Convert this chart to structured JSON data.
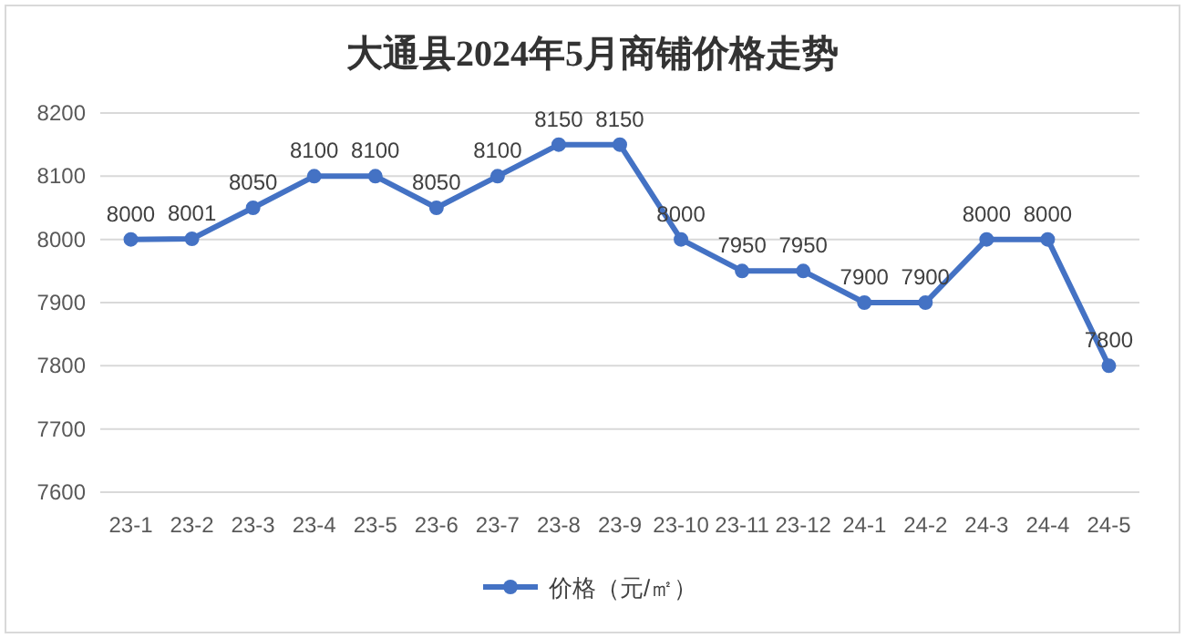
{
  "chart_data": {
    "type": "line",
    "title": "大通县2024年5月商铺价格走势",
    "categories": [
      "23-1",
      "23-2",
      "23-3",
      "23-4",
      "23-5",
      "23-6",
      "23-7",
      "23-8",
      "23-9",
      "23-10",
      "23-11",
      "23-12",
      "24-1",
      "24-2",
      "24-3",
      "24-4",
      "24-5"
    ],
    "series": [
      {
        "name": "价格（元/㎡）",
        "color": "#4472c4",
        "values": [
          8000,
          8001,
          8050,
          8100,
          8100,
          8050,
          8100,
          8150,
          8150,
          8000,
          7950,
          7950,
          7900,
          7900,
          8000,
          8000,
          7800
        ]
      }
    ],
    "ylim": [
      7600,
      8200
    ],
    "yticks": [
      7600,
      7700,
      7800,
      7900,
      8000,
      8100,
      8200
    ],
    "grid": "y",
    "legend": "bottom",
    "marker": "circle",
    "line_style": "solid",
    "data_labels": true
  }
}
